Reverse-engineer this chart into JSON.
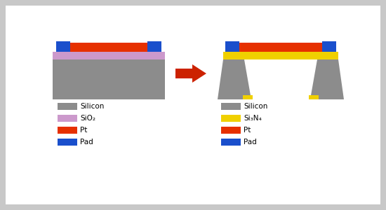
{
  "bg_color": "#c8c8c8",
  "inner_bg": "#ffffff",
  "colors": {
    "silicon": "#8c8c8c",
    "sio2": "#cc99cc",
    "si3n4": "#f0d000",
    "pt": "#e63000",
    "pad": "#1a4fcc"
  },
  "legend_left": {
    "items": [
      {
        "label": "Silicon",
        "color": "#8c8c8c"
      },
      {
        "label": "SiO₂",
        "color": "#cc99cc"
      },
      {
        "label": "Pt",
        "color": "#e63000"
      },
      {
        "label": "Pad",
        "color": "#1a4fcc"
      }
    ]
  },
  "legend_right": {
    "items": [
      {
        "label": "Silicon",
        "color": "#8c8c8c"
      },
      {
        "label": "Si₃N₄",
        "color": "#f0d000"
      },
      {
        "label": "Pt",
        "color": "#e63000"
      },
      {
        "label": "Pad",
        "color": "#1a4fcc"
      }
    ]
  },
  "arrow_color": "#cc2200",
  "font_size": 7.5
}
